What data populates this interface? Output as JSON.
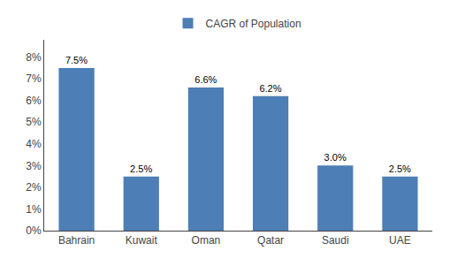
{
  "chart_data": {
    "type": "bar",
    "categories": [
      "Bahrain",
      "Kuwait",
      "Oman",
      "Qatar",
      "Saudi",
      "UAE"
    ],
    "series": [
      {
        "name": "CAGR of Population",
        "color": "#4d7eb5",
        "values": [
          0.075,
          0.025,
          0.066,
          0.062,
          0.03,
          0.025
        ],
        "value_labels": [
          "7.5%",
          "2.5%",
          "6.6%",
          "6.2%",
          "3.0%",
          "2.5%"
        ]
      }
    ],
    "ylim": [
      0,
      0.088
    ],
    "yticks": [
      {
        "value": 0.0,
        "label": "0%"
      },
      {
        "value": 0.01,
        "label": "1%"
      },
      {
        "value": 0.02,
        "label": "2%"
      },
      {
        "value": 0.03,
        "label": "3%"
      },
      {
        "value": 0.04,
        "label": "4%"
      },
      {
        "value": 0.05,
        "label": "5%"
      },
      {
        "value": 0.06,
        "label": "6%"
      },
      {
        "value": 0.07,
        "label": "7%"
      },
      {
        "value": 0.08,
        "label": "8%"
      }
    ],
    "grid": false,
    "legend": "top",
    "data_labels": true
  }
}
